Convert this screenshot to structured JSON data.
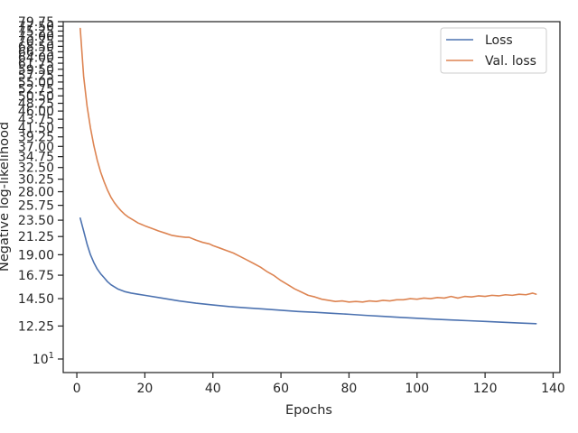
{
  "chart_data": {
    "type": "line",
    "xlabel": "Epochs",
    "ylabel": "Negative log-likelihood",
    "yscale": "log",
    "xlim": [
      -4,
      142
    ],
    "ylim": [
      9.2,
      79.75
    ],
    "grid": false,
    "legend_position": "top-right",
    "x_ticks": [
      0,
      20,
      40,
      60,
      80,
      100,
      120,
      140
    ],
    "x_tick_labels": [
      "0",
      "20",
      "40",
      "60",
      "80",
      "100",
      "120",
      "140"
    ],
    "y_ticks": [
      10,
      12.25,
      14.5,
      16.75,
      19.0,
      21.25,
      23.5,
      25.75,
      28.0,
      30.25,
      32.5,
      34.75,
      37.0,
      39.25,
      41.5,
      43.75,
      46.0,
      48.25,
      50.5,
      52.75,
      55.0,
      57.25,
      59.5,
      61.75,
      64.0,
      66.25,
      68.5,
      70.75,
      73.0,
      75.25,
      77.5,
      79.75
    ],
    "y_tick_labels": [
      "10^1",
      "12.25",
      "14.50",
      "16.75",
      "19.00",
      "21.25",
      "23.50",
      "25.75",
      "28.00",
      "30.25",
      "32.50",
      "34.75",
      "37.00",
      "39.25",
      "41.50",
      "43.75",
      "46.00",
      "48.25",
      "50.50",
      "52.75",
      "55.00",
      "57.25",
      "59.50",
      "61.75",
      "64.00",
      "66.25",
      "68.50",
      "70.75",
      "73.00",
      "75.25",
      "77.50",
      "79.75"
    ],
    "series": [
      {
        "name": "Loss",
        "color": "#4c72b0",
        "x": [
          1,
          2,
          3,
          4,
          5,
          6,
          7,
          8,
          9,
          10,
          12,
          14,
          16,
          18,
          20,
          25,
          30,
          35,
          40,
          45,
          50,
          55,
          60,
          65,
          70,
          75,
          80,
          85,
          90,
          95,
          100,
          105,
          110,
          115,
          120,
          125,
          130,
          135
        ],
        "y": [
          23.8,
          22.0,
          20.3,
          19.0,
          18.1,
          17.4,
          16.9,
          16.5,
          16.1,
          15.8,
          15.4,
          15.15,
          15.0,
          14.9,
          14.8,
          14.55,
          14.3,
          14.1,
          13.95,
          13.8,
          13.7,
          13.6,
          13.5,
          13.4,
          13.33,
          13.25,
          13.17,
          13.08,
          13.0,
          12.92,
          12.85,
          12.78,
          12.72,
          12.66,
          12.6,
          12.54,
          12.48,
          12.43
        ]
      },
      {
        "name": "Val. loss",
        "color": "#dd8452",
        "x": [
          1,
          2,
          3,
          4,
          5,
          6,
          7,
          8,
          9,
          10,
          11,
          12,
          13,
          14,
          15,
          16,
          17,
          18,
          19,
          20,
          22,
          24,
          26,
          28,
          30,
          32,
          33,
          35,
          37,
          39,
          40,
          42,
          44,
          46,
          48,
          50,
          52,
          54,
          56,
          58,
          60,
          62,
          64,
          66,
          68,
          70,
          72,
          74,
          76,
          78,
          80,
          82,
          84,
          86,
          88,
          90,
          92,
          94,
          96,
          98,
          100,
          102,
          104,
          106,
          108,
          110,
          112,
          114,
          116,
          118,
          120,
          122,
          124,
          126,
          128,
          130,
          132,
          134,
          135
        ],
        "y": [
          76.5,
          57.0,
          47.5,
          41.5,
          37.2,
          34.0,
          31.6,
          29.8,
          28.3,
          27.1,
          26.2,
          25.5,
          24.9,
          24.4,
          24.0,
          23.7,
          23.4,
          23.1,
          22.9,
          22.7,
          22.35,
          22.0,
          21.7,
          21.4,
          21.25,
          21.15,
          21.15,
          20.8,
          20.5,
          20.3,
          20.1,
          19.8,
          19.5,
          19.2,
          18.8,
          18.4,
          18.0,
          17.6,
          17.1,
          16.7,
          16.2,
          15.8,
          15.4,
          15.1,
          14.8,
          14.65,
          14.45,
          14.35,
          14.25,
          14.3,
          14.2,
          14.25,
          14.2,
          14.3,
          14.25,
          14.35,
          14.3,
          14.4,
          14.4,
          14.5,
          14.45,
          14.55,
          14.5,
          14.6,
          14.55,
          14.7,
          14.55,
          14.7,
          14.65,
          14.75,
          14.7,
          14.8,
          14.75,
          14.85,
          14.8,
          14.9,
          14.85,
          15.0,
          14.9
        ]
      }
    ]
  }
}
